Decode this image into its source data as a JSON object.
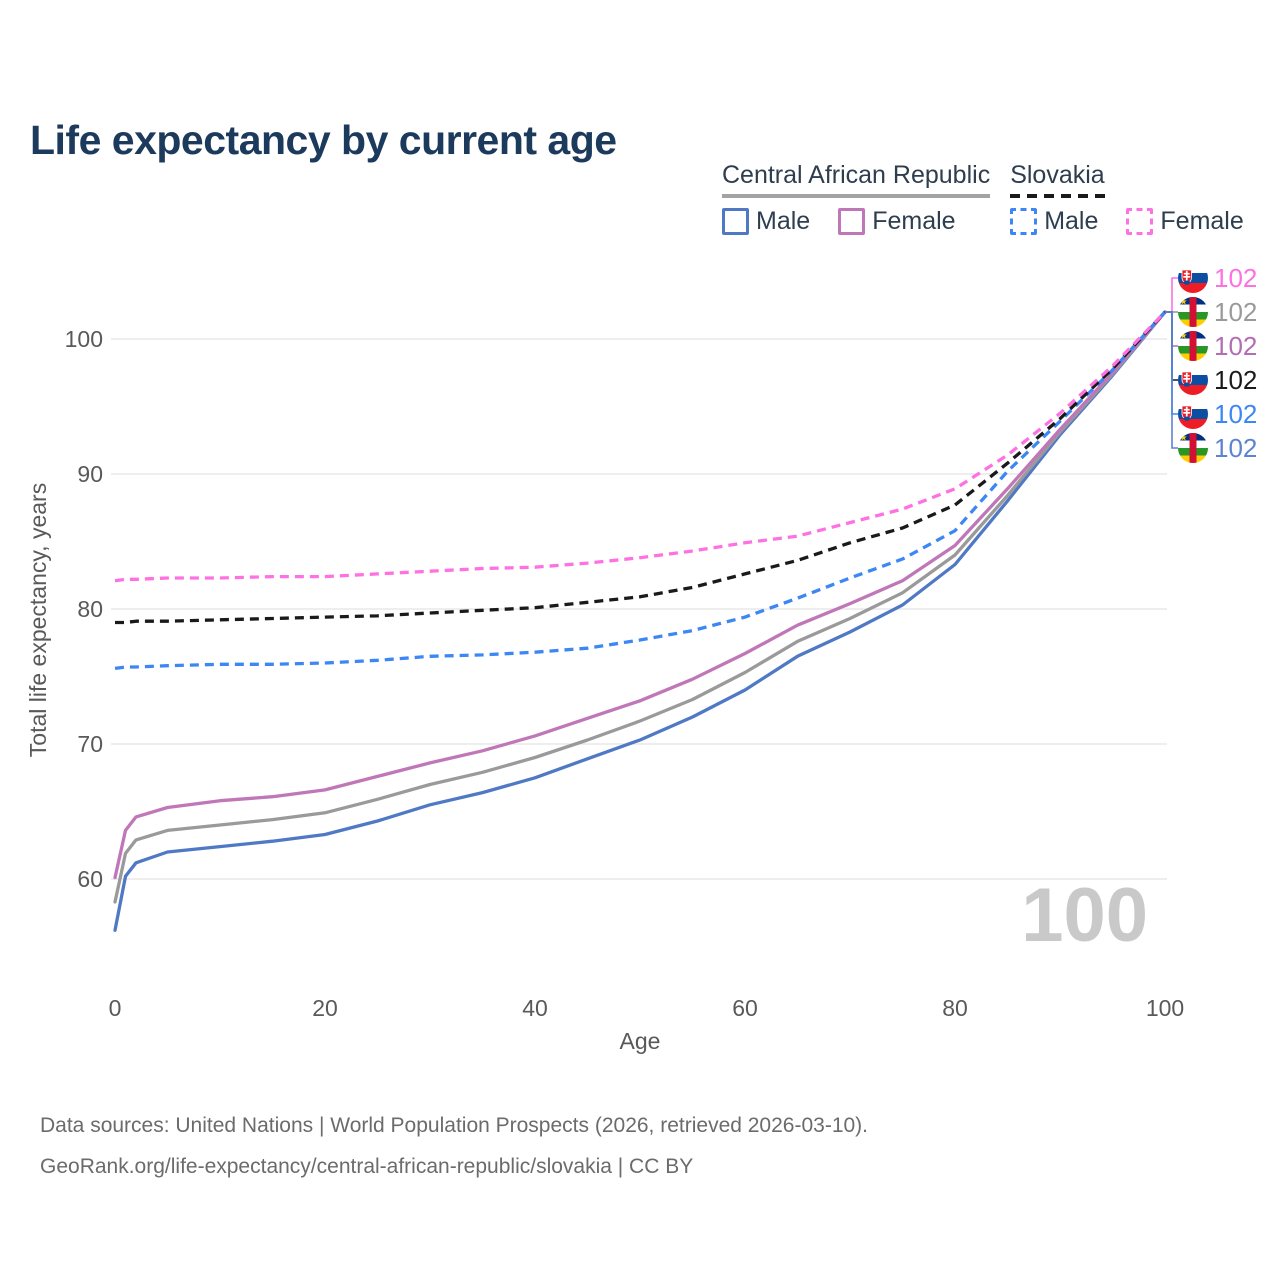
{
  "title": "Life expectancy by current age",
  "legend": {
    "groups": [
      {
        "name": "Central African Republic",
        "line_style": "solid",
        "items": [
          {
            "label": "Male",
            "color": "#4f79c5",
            "dashed": false
          },
          {
            "label": "Female",
            "color": "#c077b8",
            "dashed": false
          }
        ]
      },
      {
        "name": "Slovakia",
        "line_style": "dashed",
        "items": [
          {
            "label": "Male",
            "color": "#3d87f5",
            "dashed": true
          },
          {
            "label": "Female",
            "color": "#fe71e3",
            "dashed": true
          }
        ]
      }
    ]
  },
  "colors": {
    "title": "#1c3a5c",
    "axis_text": "#595959",
    "grid": "#e9e9e9",
    "footer_text": "#6b6b6b",
    "watermark": "#c9c9c9",
    "legend_text": "#2f3e4e",
    "car_underline": "#a3a3a3",
    "svk_underline": "#1a1a1a"
  },
  "watermark": "100",
  "chart_data": {
    "type": "line",
    "title": "Life expectancy by current age",
    "xlabel": "Age",
    "ylabel": "Total life expectancy, years",
    "xlim": [
      0,
      100
    ],
    "ylim": [
      55,
      105
    ],
    "xticks": [
      0,
      20,
      40,
      60,
      80,
      100
    ],
    "yticks": [
      60,
      70,
      80,
      90,
      100
    ],
    "grid": "horizontal-only",
    "legend_position": "top-right",
    "x": [
      0,
      1,
      2,
      5,
      10,
      15,
      20,
      25,
      30,
      35,
      40,
      45,
      50,
      55,
      60,
      65,
      70,
      75,
      80,
      85,
      90,
      95,
      100
    ],
    "series": [
      {
        "id": "car-male",
        "name": "Central African Republic Male",
        "color": "#4f79c5",
        "dashed": false,
        "values": [
          56.2,
          60.2,
          61.2,
          62.0,
          62.4,
          62.8,
          63.3,
          64.3,
          65.5,
          66.4,
          67.5,
          68.9,
          70.3,
          72.0,
          74.0,
          76.5,
          78.3,
          80.3,
          83.3,
          88.0,
          92.9,
          97.3,
          102
        ]
      },
      {
        "id": "car-both",
        "name": "Central African Republic",
        "color": "#9a9a9a",
        "dashed": false,
        "values": [
          58.3,
          61.9,
          62.9,
          63.6,
          64.0,
          64.4,
          64.9,
          65.9,
          67.0,
          67.9,
          69.0,
          70.3,
          71.7,
          73.3,
          75.3,
          77.6,
          79.3,
          81.2,
          84.0,
          88.4,
          93.1,
          97.4,
          102
        ]
      },
      {
        "id": "car-female",
        "name": "Central African Republic Female",
        "color": "#c077b8",
        "dashed": false,
        "values": [
          60.1,
          63.6,
          64.6,
          65.3,
          65.8,
          66.1,
          66.6,
          67.6,
          68.6,
          69.5,
          70.6,
          71.9,
          73.2,
          74.8,
          76.7,
          78.8,
          80.4,
          82.1,
          84.7,
          88.9,
          93.3,
          97.5,
          102
        ]
      },
      {
        "id": "svk-male",
        "name": "Slovakia Male",
        "color": "#3d87f5",
        "dashed": true,
        "values": [
          75.6,
          75.7,
          75.7,
          75.8,
          75.9,
          75.9,
          76.0,
          76.2,
          76.5,
          76.6,
          76.8,
          77.1,
          77.7,
          78.4,
          79.4,
          80.8,
          82.3,
          83.7,
          85.8,
          90.2,
          93.9,
          97.7,
          102
        ]
      },
      {
        "id": "svk-both",
        "name": "Slovakia",
        "color": "#1a1a1a",
        "dashed": true,
        "values": [
          79.0,
          79.0,
          79.1,
          79.1,
          79.2,
          79.3,
          79.4,
          79.5,
          79.7,
          79.9,
          80.1,
          80.5,
          80.9,
          81.6,
          82.6,
          83.6,
          84.9,
          86.0,
          87.7,
          90.8,
          94.1,
          97.8,
          102
        ]
      },
      {
        "id": "svk-female",
        "name": "Slovakia Female",
        "color": "#fe71e3",
        "dashed": true,
        "values": [
          82.1,
          82.2,
          82.2,
          82.3,
          82.3,
          82.4,
          82.4,
          82.6,
          82.8,
          83.0,
          83.1,
          83.4,
          83.8,
          84.3,
          84.9,
          85.4,
          86.4,
          87.4,
          88.9,
          91.4,
          94.5,
          98.0,
          102
        ]
      }
    ],
    "end_labels": [
      {
        "flag": "slovakia",
        "series": "Slovakia Female",
        "value": "102",
        "color": "#fe71e3"
      },
      {
        "flag": "car",
        "series": "Central African Republic",
        "value": "102",
        "color": "#9a9a9a"
      },
      {
        "flag": "car",
        "series": "Central African Republic Female",
        "value": "102",
        "color": "#b46cb4"
      },
      {
        "flag": "slovakia",
        "series": "Slovakia",
        "value": "102",
        "color": "#1a1a1a"
      },
      {
        "flag": "slovakia",
        "series": "Slovakia Male",
        "value": "102",
        "color": "#3d87f5"
      },
      {
        "flag": "car",
        "series": "Central African Republic Male",
        "value": "102",
        "color": "#5b84d2"
      }
    ],
    "annotations": [
      {
        "text": "100",
        "role": "age-counter-watermark"
      }
    ]
  },
  "footer": {
    "line1": "Data sources: United Nations | World Population Prospects (2026, retrieved 2026-03-10).",
    "line2": "GeoRank.org/life-expectancy/central-african-republic/slovakia | CC BY"
  }
}
